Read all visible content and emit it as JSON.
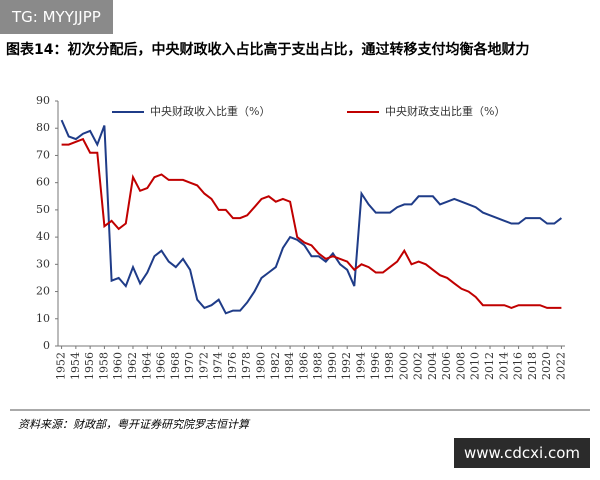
{
  "chart_data": {
    "type": "line",
    "title": "图表14：初次分配后，中央财政收入占比高于支出占比，通过转移支付均衡各地财力",
    "source": "资料来源：财政部，粤开证券研究院罗志恒计算",
    "x": [
      1952,
      1953,
      1954,
      1955,
      1956,
      1957,
      1958,
      1959,
      1960,
      1961,
      1962,
      1963,
      1964,
      1965,
      1966,
      1967,
      1968,
      1969,
      1970,
      1971,
      1972,
      1973,
      1974,
      1975,
      1976,
      1977,
      1978,
      1979,
      1980,
      1981,
      1982,
      1983,
      1984,
      1985,
      1986,
      1987,
      1988,
      1989,
      1990,
      1991,
      1992,
      1993,
      1994,
      1995,
      1996,
      1997,
      1998,
      1999,
      2000,
      2001,
      2002,
      2003,
      2004,
      2005,
      2006,
      2007,
      2008,
      2009,
      2010,
      2011,
      2012,
      2013,
      2014,
      2015,
      2016,
      2017,
      2018,
      2019,
      2020,
      2021,
      2022
    ],
    "xlim": [
      1951.5,
      2022.5
    ],
    "xticks": [
      1952,
      1954,
      1956,
      1958,
      1960,
      1962,
      1964,
      1966,
      1968,
      1970,
      1972,
      1974,
      1976,
      1978,
      1980,
      1982,
      1984,
      1986,
      1988,
      1990,
      1992,
      1994,
      1996,
      1998,
      2000,
      2002,
      2004,
      2006,
      2008,
      2010,
      2012,
      2014,
      2016,
      2018,
      2020,
      2022
    ],
    "ylim": [
      0,
      90
    ],
    "yticks": [
      0,
      10,
      20,
      30,
      40,
      50,
      60,
      70,
      80,
      90
    ],
    "grid": false,
    "legend": "top",
    "series": [
      {
        "name": "中央财政收入比重（%）",
        "color": "#1f3c88",
        "values": [
          83,
          77,
          76,
          78,
          79,
          74,
          81,
          24,
          25,
          22,
          29,
          23,
          27,
          33,
          35,
          31,
          29,
          32,
          28,
          17,
          14,
          15,
          17,
          12,
          13,
          13,
          16,
          20,
          25,
          27,
          29,
          36,
          40,
          39,
          37,
          33,
          33,
          31,
          34,
          30,
          28,
          22,
          56,
          52,
          49,
          49,
          49,
          51,
          52,
          52,
          55,
          55,
          55,
          52,
          53,
          54,
          53,
          52,
          51,
          49,
          48,
          47,
          46,
          45,
          45,
          47,
          47,
          47,
          45,
          45,
          47
        ]
      },
      {
        "name": "中央财政支出比重（%）",
        "color": "#c00000",
        "values": [
          74,
          74,
          75,
          76,
          71,
          71,
          44,
          46,
          43,
          45,
          62,
          57,
          58,
          62,
          63,
          61,
          61,
          61,
          60,
          59,
          56,
          54,
          50,
          50,
          47,
          47,
          48,
          51,
          54,
          55,
          53,
          54,
          53,
          40,
          38,
          37,
          34,
          32,
          33,
          32,
          31,
          28,
          30,
          29,
          27,
          27,
          29,
          31,
          35,
          30,
          31,
          30,
          28,
          26,
          25,
          23,
          21,
          20,
          18,
          15,
          15,
          15,
          15,
          14,
          15,
          15,
          15,
          15,
          14,
          14,
          14
        ]
      }
    ]
  },
  "watermarks": [
    "TG: MYYJJPP",
    "www.cdcxi.com"
  ]
}
